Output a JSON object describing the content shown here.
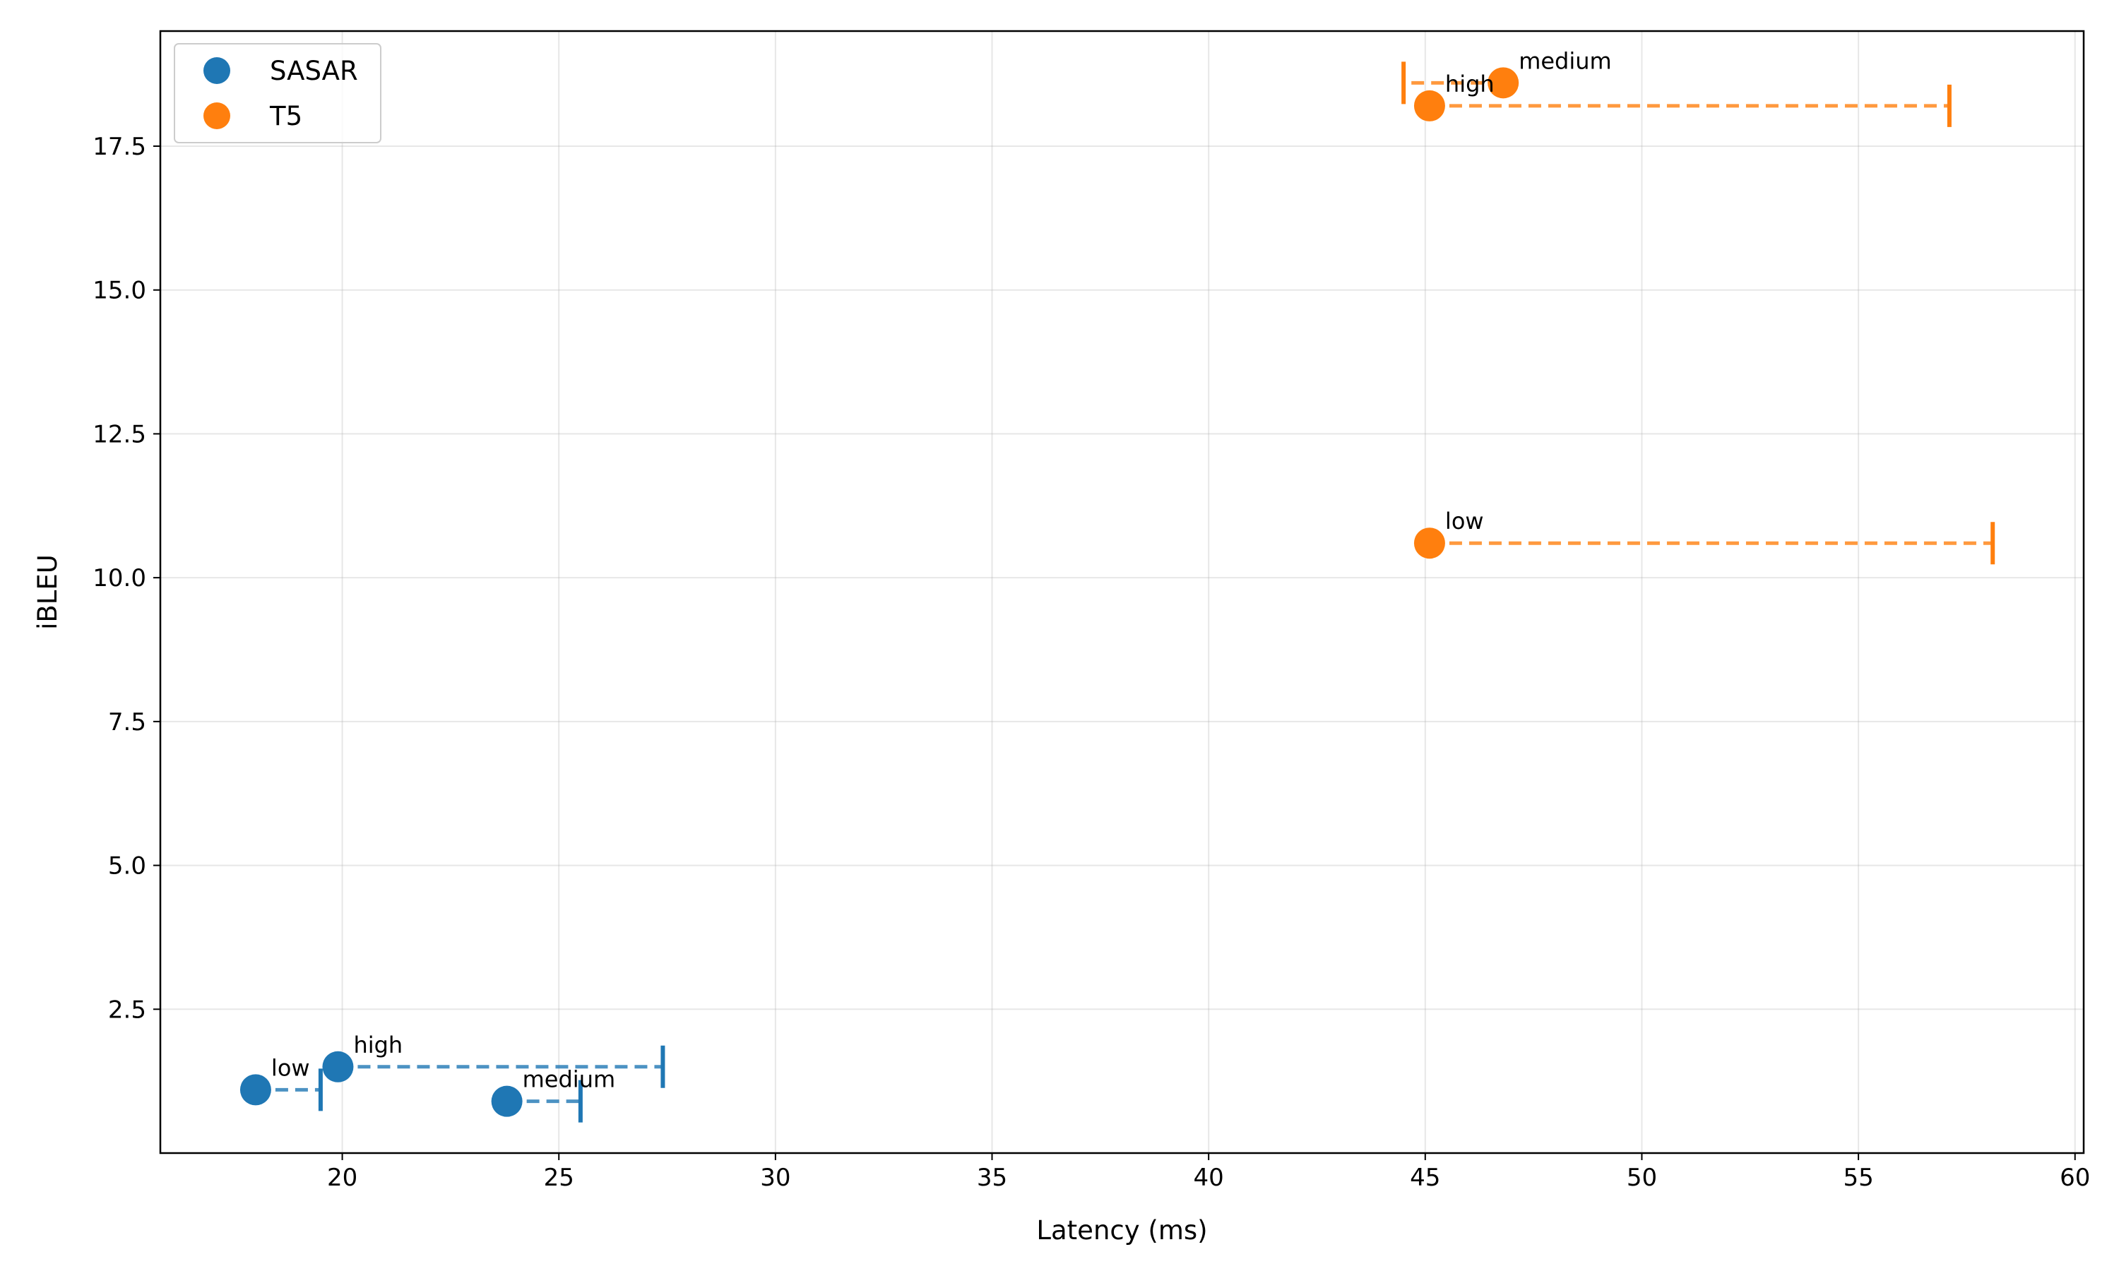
{
  "chart_data": {
    "type": "scatter",
    "xlabel": "Latency (ms)",
    "ylabel": "iBLEU",
    "xlim": [
      15.8,
      60.2
    ],
    "ylim": [
      0,
      19.5
    ],
    "x_ticks": [
      20,
      25,
      30,
      35,
      40,
      45,
      50,
      55,
      60
    ],
    "y_ticks": [
      2.5,
      5.0,
      7.5,
      10.0,
      12.5,
      15.0,
      17.5
    ],
    "x_tick_labels": [
      "20",
      "25",
      "30",
      "35",
      "40",
      "45",
      "50",
      "55",
      "60"
    ],
    "y_tick_labels": [
      "2.5",
      "5.0",
      "7.5",
      "10.0",
      "12.5",
      "15.0",
      "17.5"
    ],
    "grid": true,
    "legend_position": "upper-left",
    "series": [
      {
        "name": "SASAR",
        "color": "#1f77b4",
        "points": [
          {
            "label": "low",
            "x": 18.0,
            "y": 1.1,
            "x_end": 19.5
          },
          {
            "label": "high",
            "x": 19.9,
            "y": 1.5,
            "x_end": 27.4
          },
          {
            "label": "medium",
            "x": 23.8,
            "y": 0.9,
            "x_end": 25.5
          }
        ]
      },
      {
        "name": "T5",
        "color": "#ff7f0e",
        "points": [
          {
            "label": "low",
            "x": 45.1,
            "y": 10.6,
            "x_end": 58.1
          },
          {
            "label": "high",
            "x": 45.1,
            "y": 18.2,
            "x_end": 57.1
          },
          {
            "label": "medium",
            "x": 46.8,
            "y": 18.6,
            "x_end": 44.5
          }
        ]
      }
    ]
  }
}
